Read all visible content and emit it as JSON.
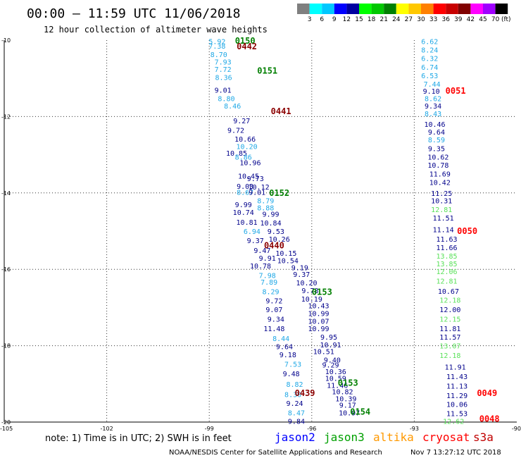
{
  "chart_data": {
    "type": "scatter",
    "title": "00:00 – 11:59 UTC 11/06/2018",
    "subtitle": "12 hour collection of altimeter wave heights",
    "xlim": [
      -105,
      -90
    ],
    "ylim": [
      -20,
      -10
    ],
    "x_ticks": [
      "-105",
      "-102",
      "-99",
      "-96",
      "-93",
      "-90"
    ],
    "y_ticks": [
      "-10",
      "-12",
      "-14",
      "-16",
      "-18",
      "-20"
    ],
    "grid": true,
    "colorbar": {
      "labels": [
        "3",
        "6",
        "9",
        "12",
        "15",
        "18",
        "21",
        "24",
        "27",
        "30",
        "33",
        "36",
        "39",
        "42",
        "45",
        "70"
      ],
      "unit": "(ft)",
      "colors": [
        "#7f7f7f",
        "#00ffff",
        "#00c8ff",
        "#0000ff",
        "#0000a0",
        "#00ff00",
        "#00c800",
        "#008000",
        "#ffff00",
        "#ffc800",
        "#ff8000",
        "#ff0000",
        "#c80000",
        "#800000",
        "#ff00ff",
        "#a000ff",
        "#000000"
      ]
    },
    "colors": {
      "navy": "#00008b",
      "cyan": "#1fa8e6",
      "lgreen": "#59e159",
      "green": "#007f00",
      "dred": "#8b0000",
      "red": "#ff0000"
    },
    "note": "note: 1) Time is in UTC; 2) SWH is in feet",
    "legend": [
      {
        "name": "jason2",
        "color": "#0000ff"
      },
      {
        "name": "jason3",
        "color": "#00a000"
      },
      {
        "name": "altika",
        "color": "#ff9900"
      },
      {
        "name": "cryosat",
        "color": "#ff0000"
      },
      {
        "name": "s3a",
        "color": "#c00000"
      }
    ],
    "footer_left": "NOAA/NESDIS Center for Satellite Applications and Research",
    "footer_right": "Nov  7 13:27:12 UTC 2018",
    "track_labels": [
      {
        "text": "0150",
        "x": -97.95,
        "y": -10.02,
        "c": "green"
      },
      {
        "text": "0442",
        "x": -97.9,
        "y": -10.17,
        "c": "dred"
      },
      {
        "text": "0151",
        "x": -97.3,
        "y": -10.8,
        "c": "green"
      },
      {
        "text": "0441",
        "x": -96.9,
        "y": -11.86,
        "c": "dred"
      },
      {
        "text": "0152",
        "x": -96.95,
        "y": -14.0,
        "c": "green"
      },
      {
        "text": "0440",
        "x": -97.1,
        "y": -15.38,
        "c": "dred"
      },
      {
        "text": "0153",
        "x": -95.7,
        "y": -16.6,
        "c": "green"
      },
      {
        "text": "0439",
        "x": -96.2,
        "y": -19.24,
        "c": "dred"
      },
      {
        "text": "0153",
        "x": -94.94,
        "y": -18.98,
        "c": "green"
      },
      {
        "text": "0154",
        "x": -94.58,
        "y": -19.73,
        "c": "green"
      },
      {
        "text": "0051",
        "x": -91.79,
        "y": -11.33,
        "c": "red"
      },
      {
        "text": "0050",
        "x": -91.45,
        "y": -15.0,
        "c": "red"
      },
      {
        "text": "0049",
        "x": -90.87,
        "y": -19.24,
        "c": "red"
      },
      {
        "text": "0048",
        "x": -90.8,
        "y": -19.92,
        "c": "red"
      }
    ],
    "points": [
      {
        "x": -98.77,
        "y": -10.03,
        "v": "5.92",
        "c": "cyan"
      },
      {
        "x": -98.77,
        "y": -10.15,
        "v": "7.38",
        "c": "cyan"
      },
      {
        "x": -98.72,
        "y": -10.37,
        "v": "8.70",
        "c": "cyan"
      },
      {
        "x": -98.6,
        "y": -10.56,
        "v": "7.93",
        "c": "cyan"
      },
      {
        "x": -98.6,
        "y": -10.76,
        "v": "7.72",
        "c": "cyan"
      },
      {
        "x": -98.58,
        "y": -10.97,
        "v": "8.36",
        "c": "cyan"
      },
      {
        "x": -98.6,
        "y": -11.3,
        "v": "9.01",
        "c": "navy"
      },
      {
        "x": -98.5,
        "y": -11.52,
        "v": "8.80",
        "c": "cyan"
      },
      {
        "x": -98.32,
        "y": -11.72,
        "v": "8.46",
        "c": "cyan"
      },
      {
        "x": -98.05,
        "y": -12.1,
        "v": "9.27",
        "c": "navy"
      },
      {
        "x": -98.22,
        "y": -12.35,
        "v": "9.72",
        "c": "navy"
      },
      {
        "x": -97.95,
        "y": -12.58,
        "v": "10.66",
        "c": "navy"
      },
      {
        "x": -97.9,
        "y": -12.78,
        "v": "10.20",
        "c": "cyan"
      },
      {
        "x": -98.2,
        "y": -12.95,
        "v": "10.85",
        "c": "navy"
      },
      {
        "x": -98.0,
        "y": -13.05,
        "v": "8.86",
        "c": "cyan"
      },
      {
        "x": -97.8,
        "y": -13.2,
        "v": "10.96",
        "c": "navy"
      },
      {
        "x": -97.85,
        "y": -13.55,
        "v": "10.45",
        "c": "navy"
      },
      {
        "x": -97.65,
        "y": -13.62,
        "v": "9.73",
        "c": "navy"
      },
      {
        "x": -97.95,
        "y": -13.82,
        "v": "9.03",
        "c": "navy"
      },
      {
        "x": -97.55,
        "y": -13.84,
        "v": "10.12",
        "c": "navy"
      },
      {
        "x": -97.95,
        "y": -13.98,
        "v": "8.67",
        "c": "cyan"
      },
      {
        "x": -97.6,
        "y": -13.98,
        "v": "9.01",
        "c": "navy"
      },
      {
        "x": -97.35,
        "y": -14.2,
        "v": "8.79",
        "c": "cyan"
      },
      {
        "x": -98.0,
        "y": -14.3,
        "v": "9.99",
        "c": "navy"
      },
      {
        "x": -97.35,
        "y": -14.38,
        "v": "8.88",
        "c": "cyan"
      },
      {
        "x": -98.0,
        "y": -14.5,
        "v": "10.74",
        "c": "navy"
      },
      {
        "x": -97.2,
        "y": -14.55,
        "v": "9.99",
        "c": "navy"
      },
      {
        "x": -97.9,
        "y": -14.76,
        "v": "10.81",
        "c": "navy"
      },
      {
        "x": -97.2,
        "y": -14.78,
        "v": "10.84",
        "c": "navy"
      },
      {
        "x": -97.75,
        "y": -15.0,
        "v": "6.94",
        "c": "cyan"
      },
      {
        "x": -97.05,
        "y": -15.0,
        "v": "9.53",
        "c": "navy"
      },
      {
        "x": -97.65,
        "y": -15.24,
        "v": "9.37",
        "c": "navy"
      },
      {
        "x": -96.95,
        "y": -15.2,
        "v": "10.26",
        "c": "navy"
      },
      {
        "x": -97.45,
        "y": -15.5,
        "v": "9.47",
        "c": "navy"
      },
      {
        "x": -97.3,
        "y": -15.7,
        "v": "9.91",
        "c": "navy"
      },
      {
        "x": -96.75,
        "y": -15.57,
        "v": "10.15",
        "c": "navy"
      },
      {
        "x": -96.7,
        "y": -15.77,
        "v": "10.54",
        "c": "navy"
      },
      {
        "x": -97.5,
        "y": -15.9,
        "v": "10.78",
        "c": "navy"
      },
      {
        "x": -96.35,
        "y": -15.95,
        "v": "9.19",
        "c": "navy"
      },
      {
        "x": -97.3,
        "y": -16.15,
        "v": "7.98",
        "c": "cyan"
      },
      {
        "x": -96.3,
        "y": -16.13,
        "v": "9.37",
        "c": "navy"
      },
      {
        "x": -97.25,
        "y": -16.33,
        "v": "7.89",
        "c": "cyan"
      },
      {
        "x": -96.15,
        "y": -16.35,
        "v": "10.20",
        "c": "navy"
      },
      {
        "x": -97.2,
        "y": -16.58,
        "v": "8.29",
        "c": "cyan"
      },
      {
        "x": -96.05,
        "y": -16.55,
        "v": "9.78",
        "c": "navy"
      },
      {
        "x": -96.0,
        "y": -16.77,
        "v": "10.19",
        "c": "navy"
      },
      {
        "x": -97.1,
        "y": -16.82,
        "v": "9.72",
        "c": "navy"
      },
      {
        "x": -95.8,
        "y": -16.95,
        "v": "10.43",
        "c": "navy"
      },
      {
        "x": -97.1,
        "y": -17.05,
        "v": "9.07",
        "c": "navy"
      },
      {
        "x": -95.8,
        "y": -17.15,
        "v": "10.99",
        "c": "navy"
      },
      {
        "x": -97.05,
        "y": -17.3,
        "v": "9.34",
        "c": "navy"
      },
      {
        "x": -95.8,
        "y": -17.35,
        "v": "10.07",
        "c": "navy"
      },
      {
        "x": -97.1,
        "y": -17.55,
        "v": "11.48",
        "c": "navy"
      },
      {
        "x": -95.8,
        "y": -17.55,
        "v": "10.99",
        "c": "navy"
      },
      {
        "x": -96.9,
        "y": -17.8,
        "v": "8.44",
        "c": "cyan"
      },
      {
        "x": -95.5,
        "y": -17.77,
        "v": "9.95",
        "c": "navy"
      },
      {
        "x": -96.8,
        "y": -18.02,
        "v": "9.64",
        "c": "navy"
      },
      {
        "x": -95.45,
        "y": -17.97,
        "v": "10.91",
        "c": "navy"
      },
      {
        "x": -95.65,
        "y": -18.15,
        "v": "10.51",
        "c": "navy"
      },
      {
        "x": -96.7,
        "y": -18.23,
        "v": "9.18",
        "c": "navy"
      },
      {
        "x": -95.4,
        "y": -18.37,
        "v": "9.40",
        "c": "navy"
      },
      {
        "x": -96.55,
        "y": -18.48,
        "v": "7.53",
        "c": "cyan"
      },
      {
        "x": -95.45,
        "y": -18.5,
        "v": "9.29",
        "c": "navy"
      },
      {
        "x": -96.6,
        "y": -18.73,
        "v": "9.48",
        "c": "navy"
      },
      {
        "x": -95.3,
        "y": -18.67,
        "v": "10.36",
        "c": "navy"
      },
      {
        "x": -95.3,
        "y": -18.85,
        "v": "10.59",
        "c": "navy"
      },
      {
        "x": -96.5,
        "y": -19.0,
        "v": "8.82",
        "c": "cyan"
      },
      {
        "x": -95.25,
        "y": -19.03,
        "v": "11.46",
        "c": "navy"
      },
      {
        "x": -95.1,
        "y": -19.2,
        "v": "10.82",
        "c": "navy"
      },
      {
        "x": -96.55,
        "y": -19.27,
        "v": "8.30",
        "c": "cyan"
      },
      {
        "x": -95.0,
        "y": -19.38,
        "v": "10.39",
        "c": "navy"
      },
      {
        "x": -96.5,
        "y": -19.5,
        "v": "9.24",
        "c": "navy"
      },
      {
        "x": -94.95,
        "y": -19.55,
        "v": "9.17",
        "c": "navy"
      },
      {
        "x": -96.45,
        "y": -19.75,
        "v": "8.47",
        "c": "cyan"
      },
      {
        "x": -94.9,
        "y": -19.75,
        "v": "10.97",
        "c": "navy"
      },
      {
        "x": -96.45,
        "y": -19.97,
        "v": "9.84",
        "c": "navy"
      },
      {
        "x": -92.55,
        "y": -10.03,
        "v": "6.62",
        "c": "cyan"
      },
      {
        "x": -92.55,
        "y": -10.25,
        "v": "8.24",
        "c": "cyan"
      },
      {
        "x": -92.55,
        "y": -10.47,
        "v": "6.32",
        "c": "cyan"
      },
      {
        "x": -92.55,
        "y": -10.7,
        "v": "6.74",
        "c": "cyan"
      },
      {
        "x": -92.55,
        "y": -10.92,
        "v": "6.53",
        "c": "cyan"
      },
      {
        "x": -92.48,
        "y": -11.14,
        "v": "7.44",
        "c": "cyan"
      },
      {
        "x": -92.5,
        "y": -11.33,
        "v": "9.10",
        "c": "navy"
      },
      {
        "x": -92.45,
        "y": -11.52,
        "v": "8.62",
        "c": "cyan"
      },
      {
        "x": -92.45,
        "y": -11.72,
        "v": "9.34",
        "c": "navy"
      },
      {
        "x": -92.45,
        "y": -11.92,
        "v": "8.43",
        "c": "cyan"
      },
      {
        "x": -92.4,
        "y": -12.2,
        "v": "10.46",
        "c": "navy"
      },
      {
        "x": -92.35,
        "y": -12.4,
        "v": "9.64",
        "c": "navy"
      },
      {
        "x": -92.35,
        "y": -12.6,
        "v": "8.59",
        "c": "cyan"
      },
      {
        "x": -92.35,
        "y": -12.83,
        "v": "9.35",
        "c": "navy"
      },
      {
        "x": -92.3,
        "y": -13.05,
        "v": "10.62",
        "c": "navy"
      },
      {
        "x": -92.3,
        "y": -13.27,
        "v": "10.78",
        "c": "navy"
      },
      {
        "x": -92.25,
        "y": -13.5,
        "v": "11.69",
        "c": "navy"
      },
      {
        "x": -92.25,
        "y": -13.72,
        "v": "10.42",
        "c": "navy"
      },
      {
        "x": -92.2,
        "y": -14.0,
        "v": "11.25",
        "c": "navy"
      },
      {
        "x": -92.2,
        "y": -14.2,
        "v": "10.31",
        "c": "navy"
      },
      {
        "x": -92.2,
        "y": -14.43,
        "v": "12.81",
        "c": "lgreen"
      },
      {
        "x": -92.15,
        "y": -14.65,
        "v": "11.51",
        "c": "navy"
      },
      {
        "x": -92.15,
        "y": -14.95,
        "v": "11.14",
        "c": "navy"
      },
      {
        "x": -92.05,
        "y": -15.2,
        "v": "11.63",
        "c": "navy"
      },
      {
        "x": -92.05,
        "y": -15.42,
        "v": "11.66",
        "c": "navy"
      },
      {
        "x": -92.05,
        "y": -15.65,
        "v": "13.85",
        "c": "lgreen"
      },
      {
        "x": -92.05,
        "y": -15.85,
        "v": "13.85",
        "c": "lgreen"
      },
      {
        "x": -92.05,
        "y": -16.05,
        "v": "12.06",
        "c": "lgreen"
      },
      {
        "x": -92.05,
        "y": -16.3,
        "v": "12.81",
        "c": "lgreen"
      },
      {
        "x": -92.0,
        "y": -16.57,
        "v": "10.67",
        "c": "navy"
      },
      {
        "x": -91.95,
        "y": -16.8,
        "v": "12.18",
        "c": "lgreen"
      },
      {
        "x": -91.95,
        "y": -17.05,
        "v": "12.00",
        "c": "navy"
      },
      {
        "x": -91.95,
        "y": -17.3,
        "v": "12.15",
        "c": "lgreen"
      },
      {
        "x": -91.95,
        "y": -17.55,
        "v": "11.81",
        "c": "navy"
      },
      {
        "x": -91.95,
        "y": -17.77,
        "v": "11.57",
        "c": "navy"
      },
      {
        "x": -91.95,
        "y": -18.0,
        "v": "13.07",
        "c": "lgreen"
      },
      {
        "x": -91.95,
        "y": -18.25,
        "v": "12.18",
        "c": "lgreen"
      },
      {
        "x": -91.8,
        "y": -18.55,
        "v": "11.91",
        "c": "navy"
      },
      {
        "x": -91.75,
        "y": -18.8,
        "v": "11.43",
        "c": "navy"
      },
      {
        "x": -91.75,
        "y": -19.05,
        "v": "11.13",
        "c": "navy"
      },
      {
        "x": -91.75,
        "y": -19.3,
        "v": "11.29",
        "c": "navy"
      },
      {
        "x": -91.75,
        "y": -19.53,
        "v": "10.06",
        "c": "navy"
      },
      {
        "x": -91.75,
        "y": -19.77,
        "v": "11.53",
        "c": "navy"
      },
      {
        "x": -91.85,
        "y": -19.97,
        "v": "12.62",
        "c": "lgreen"
      }
    ]
  }
}
